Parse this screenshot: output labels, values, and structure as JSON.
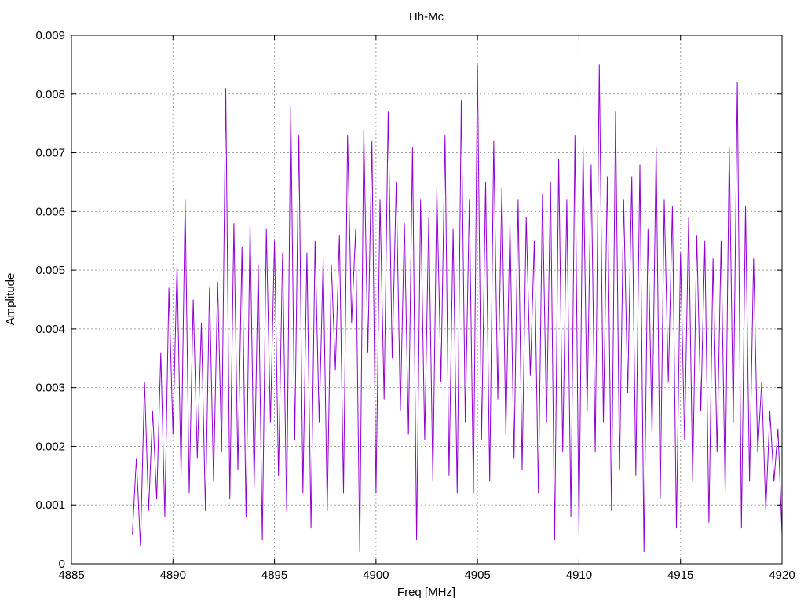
{
  "chart_data": {
    "type": "line",
    "title": "Hh-Mc",
    "xlabel": "Freq [MHz]",
    "ylabel": "Amplitude",
    "xlim": [
      4885,
      4920
    ],
    "ylim": [
      0,
      0.009
    ],
    "grid": true,
    "x_ticks": [
      4885,
      4890,
      4895,
      4900,
      4905,
      4910,
      4915,
      4920
    ],
    "x_tick_labels": [
      "4885",
      "4890",
      "4895",
      "4900",
      "4905",
      "4910",
      "4915",
      "4920"
    ],
    "y_ticks": [
      0,
      0.001,
      0.002,
      0.003,
      0.004,
      0.005,
      0.006,
      0.007,
      0.008,
      0.009
    ],
    "y_tick_labels": [
      "0",
      "0.001",
      "0.002",
      "0.003",
      "0.004",
      "0.005",
      "0.006",
      "0.007",
      "0.008",
      "0.009"
    ],
    "colors": {
      "series": "#9400d3",
      "grid": "#a0a0a0",
      "frame": "#000000"
    },
    "series": [
      {
        "x": [
          4888.0,
          4888.2,
          4888.4,
          4888.6,
          4888.8,
          4889.0,
          4889.2,
          4889.4,
          4889.6,
          4889.8,
          4890.0,
          4890.2,
          4890.4,
          4890.6,
          4890.8,
          4891.0,
          4891.2,
          4891.4,
          4891.6,
          4891.8,
          4892.0,
          4892.2,
          4892.4,
          4892.6,
          4892.8,
          4893.0,
          4893.2,
          4893.4,
          4893.6,
          4893.8,
          4894.0,
          4894.2,
          4894.4,
          4894.6,
          4894.8,
          4895.0,
          4895.2,
          4895.4,
          4895.6,
          4895.8,
          4896.0,
          4896.2,
          4896.4,
          4896.6,
          4896.8,
          4897.0,
          4897.2,
          4897.4,
          4897.6,
          4897.8,
          4898.0,
          4898.2,
          4898.4,
          4898.6,
          4898.8,
          4899.0,
          4899.2,
          4899.4,
          4899.6,
          4899.8,
          4900.0,
          4900.2,
          4900.4,
          4900.6,
          4900.8,
          4901.0,
          4901.2,
          4901.4,
          4901.6,
          4901.8,
          4902.0,
          4902.2,
          4902.4,
          4902.6,
          4902.8,
          4903.0,
          4903.2,
          4903.4,
          4903.6,
          4903.8,
          4904.0,
          4904.2,
          4904.4,
          4904.6,
          4904.8,
          4905.0,
          4905.2,
          4905.4,
          4905.6,
          4905.8,
          4906.0,
          4906.2,
          4906.4,
          4906.6,
          4906.8,
          4907.0,
          4907.2,
          4907.4,
          4907.6,
          4907.8,
          4908.0,
          4908.2,
          4908.4,
          4908.6,
          4908.8,
          4909.0,
          4909.2,
          4909.4,
          4909.6,
          4909.8,
          4910.0,
          4910.2,
          4910.4,
          4910.6,
          4910.8,
          4911.0,
          4911.2,
          4911.4,
          4911.6,
          4911.8,
          4912.0,
          4912.2,
          4912.4,
          4912.6,
          4912.8,
          4913.0,
          4913.2,
          4913.4,
          4913.6,
          4913.8,
          4914.0,
          4914.2,
          4914.4,
          4914.6,
          4914.8,
          4915.0,
          4915.2,
          4915.4,
          4915.6,
          4915.8,
          4916.0,
          4916.2,
          4916.4,
          4916.6,
          4916.8,
          4917.0,
          4917.2,
          4917.4,
          4917.6,
          4917.8,
          4918.0,
          4918.2,
          4918.4,
          4918.6,
          4918.8,
          4919.0,
          4919.2,
          4919.4,
          4919.6,
          4919.8,
          4920.0
        ],
        "y": [
          0.0005,
          0.0018,
          0.0003,
          0.0031,
          0.0009,
          0.0026,
          0.0011,
          0.0036,
          0.0008,
          0.0047,
          0.0022,
          0.0051,
          0.0015,
          0.0062,
          0.0012,
          0.0045,
          0.0018,
          0.0041,
          0.0009,
          0.0047,
          0.0014,
          0.0048,
          0.0019,
          0.0081,
          0.0011,
          0.0058,
          0.0016,
          0.0054,
          0.0008,
          0.0058,
          0.0013,
          0.0051,
          0.0004,
          0.0057,
          0.0024,
          0.0055,
          0.0015,
          0.0053,
          0.0009,
          0.0078,
          0.0021,
          0.0073,
          0.0012,
          0.0053,
          0.0006,
          0.0055,
          0.0024,
          0.0052,
          0.0009,
          0.0051,
          0.0033,
          0.0056,
          0.0012,
          0.0073,
          0.0041,
          0.0057,
          0.0002,
          0.0074,
          0.0036,
          0.0072,
          0.0012,
          0.0062,
          0.0028,
          0.0077,
          0.0035,
          0.0065,
          0.0026,
          0.0058,
          0.0022,
          0.0071,
          0.0004,
          0.0062,
          0.0021,
          0.0059,
          0.0014,
          0.0064,
          0.0031,
          0.0073,
          0.0015,
          0.0057,
          0.0012,
          0.0079,
          0.0024,
          0.0062,
          0.0012,
          0.0085,
          0.0021,
          0.0065,
          0.0014,
          0.0072,
          0.0028,
          0.0064,
          0.0022,
          0.0058,
          0.0018,
          0.0062,
          0.0016,
          0.0059,
          0.0032,
          0.0055,
          0.0012,
          0.0063,
          0.0024,
          0.0065,
          0.0004,
          0.0069,
          0.0019,
          0.0062,
          0.0008,
          0.0073,
          0.0005,
          0.0071,
          0.0026,
          0.0068,
          0.0019,
          0.0085,
          0.0024,
          0.0066,
          0.0009,
          0.0077,
          0.0016,
          0.0062,
          0.0029,
          0.0066,
          0.0015,
          0.0068,
          0.0002,
          0.0057,
          0.0022,
          0.0071,
          0.0011,
          0.0062,
          0.0031,
          0.0061,
          0.0006,
          0.0053,
          0.0021,
          0.0059,
          0.0014,
          0.0056,
          0.0026,
          0.0055,
          0.0007,
          0.0052,
          0.0019,
          0.0055,
          0.0012,
          0.0071,
          0.0024,
          0.0082,
          0.0006,
          0.0061,
          0.0014,
          0.0052,
          0.0019,
          0.0031,
          0.0009,
          0.0026,
          0.0014,
          0.0023,
          0.0005
        ]
      }
    ]
  }
}
